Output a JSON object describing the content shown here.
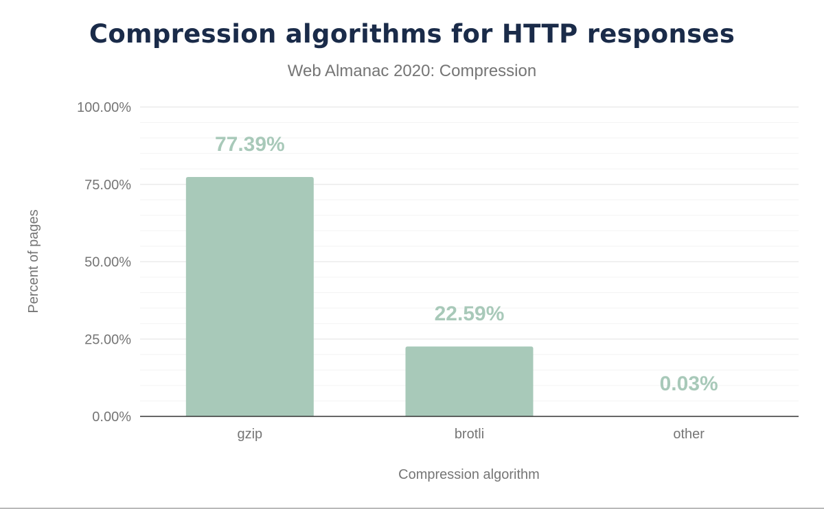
{
  "chart_data": {
    "type": "bar",
    "title": "Compression algorithms for HTTP responses",
    "subtitle": "Web Almanac 2020: Compression",
    "xlabel": "Compression algorithm",
    "ylabel": "Percent of pages",
    "categories": [
      "gzip",
      "brotli",
      "other"
    ],
    "values": [
      77.39,
      22.59,
      0.03
    ],
    "data_labels": [
      "77.39%",
      "22.59%",
      "0.03%"
    ],
    "ylim": [
      0,
      100
    ],
    "yticks": [
      0,
      25,
      50,
      75,
      100
    ],
    "ytick_labels": [
      "0.00%",
      "25.00%",
      "50.00%",
      "75.00%",
      "100.00%"
    ],
    "grid": true,
    "legend": "none",
    "colors": {
      "bar": "#a8c9b9",
      "label": "#a8c9b9",
      "title": "#1a2b49",
      "axis_text": "#757575"
    }
  }
}
